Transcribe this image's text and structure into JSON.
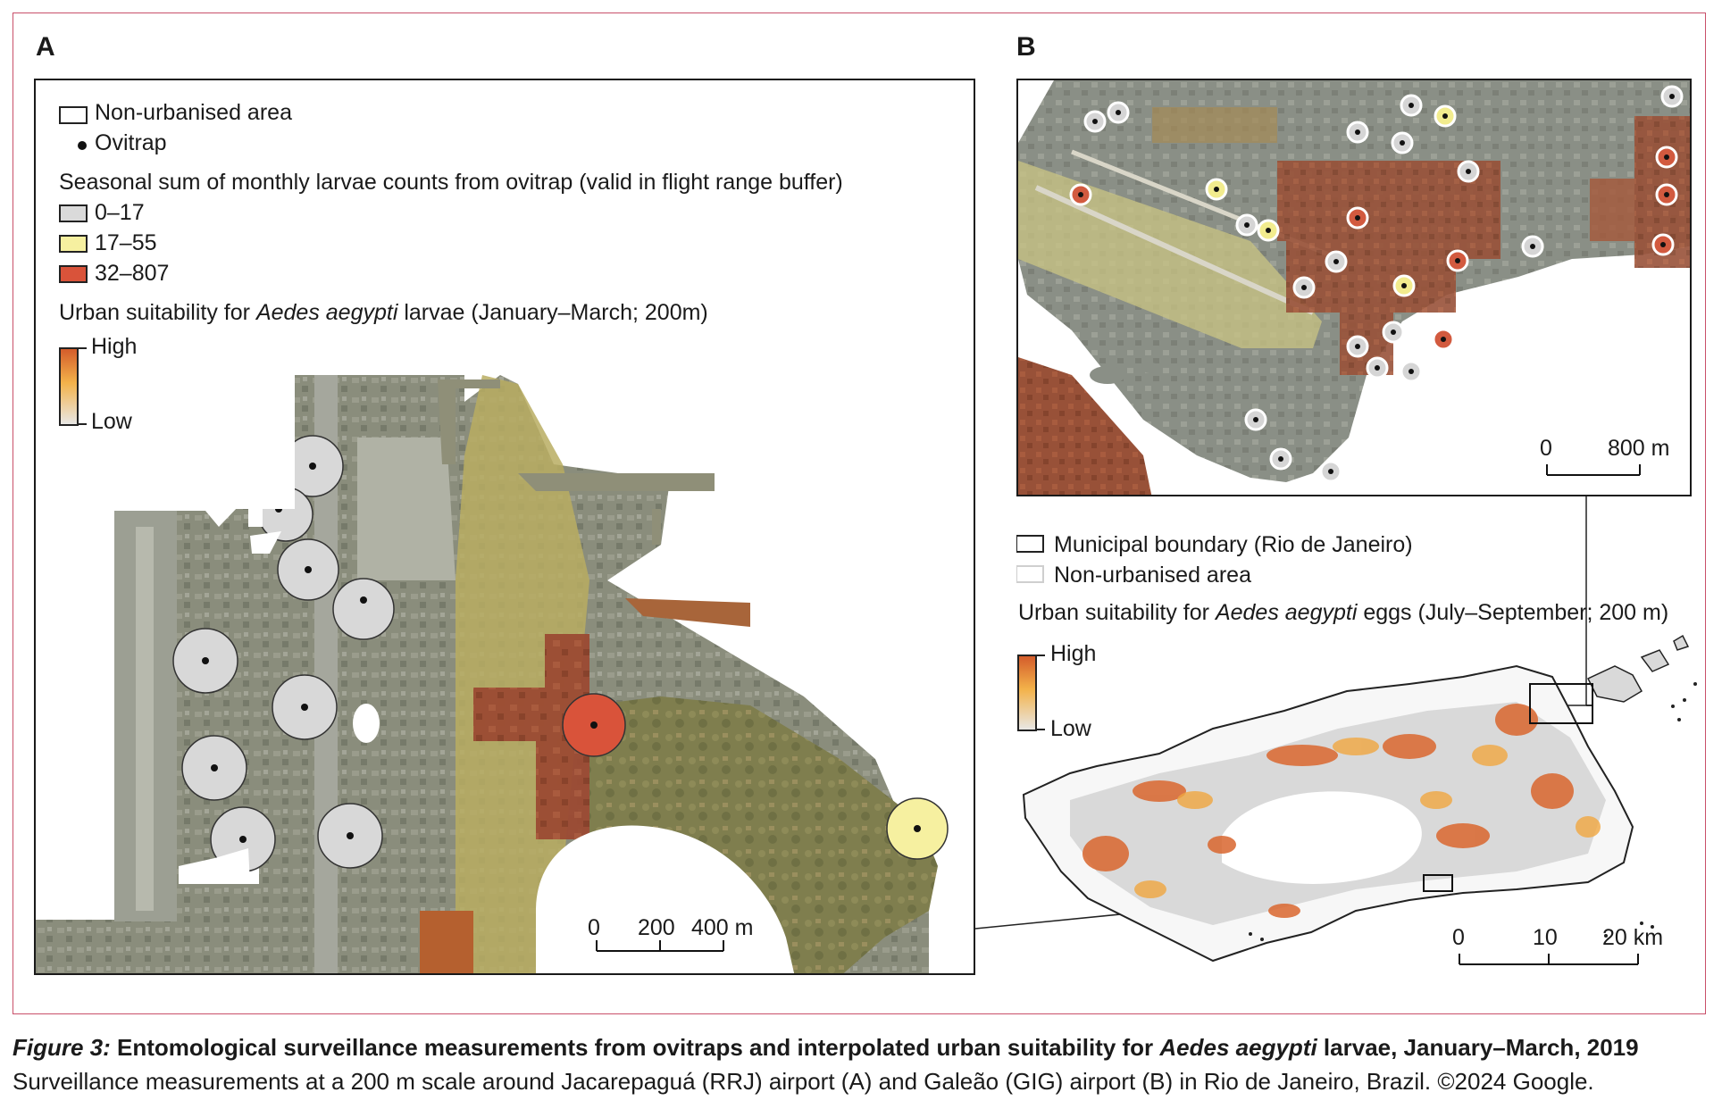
{
  "panel_a": {
    "letter": "A",
    "legend": {
      "non_urbanised": "Non-urbanised area",
      "ovitrap": "Ovitrap",
      "seasonal_title": "Seasonal sum of monthly larvae counts from ovitrap (valid in flight range buffer)",
      "class1": "0–17",
      "class2": "17–55",
      "class3": "32–807",
      "suitability_prefix": "Urban suitability for ",
      "suitability_species": "Aedes aegypti",
      "suitability_suffix": " larvae (January–March; 200m)",
      "high": "High",
      "low": "Low"
    },
    "scalebar": {
      "t0": "0",
      "t1": "200",
      "t2": "400 m"
    }
  },
  "panel_b": {
    "letter": "B",
    "scalebar": {
      "t0": "0",
      "t1": "800 m"
    }
  },
  "overview": {
    "legend": {
      "municipal": "Municipal boundary (Rio de Janeiro)",
      "non_urbanised": "Non-urbanised area",
      "suitability_prefix": "Urban suitability for ",
      "suitability_species": "Aedes aegypti",
      "suitability_suffix": " eggs (July–September; 200 m)",
      "high": "High",
      "low": "Low"
    },
    "scalebar": {
      "t0": "0",
      "t1": "10",
      "t2": "20 km"
    }
  },
  "caption": {
    "label": "Figure 3:",
    "title_pre": " Entomological surveillance measurements from ovitraps and interpolated urban suitability for ",
    "title_species": "Aedes aegypti",
    "title_post": " larvae, January–March, 2019",
    "subtitle": "Surveillance measurements at a 200 m scale around Jacarepaguá (RRJ) airport (A) and Galeão (GIG) airport (B) in Rio de Janeiro, Brazil. ©2024 Google."
  },
  "colors": {
    "frame": "#c9506a",
    "class_low": "#dadada",
    "class_mid": "#f6f0a0",
    "class_high": "#d9533a",
    "ramp_high": "#d35a2a",
    "ramp_mid": "#f3b24a",
    "ramp_low": "#e8e8e8"
  }
}
